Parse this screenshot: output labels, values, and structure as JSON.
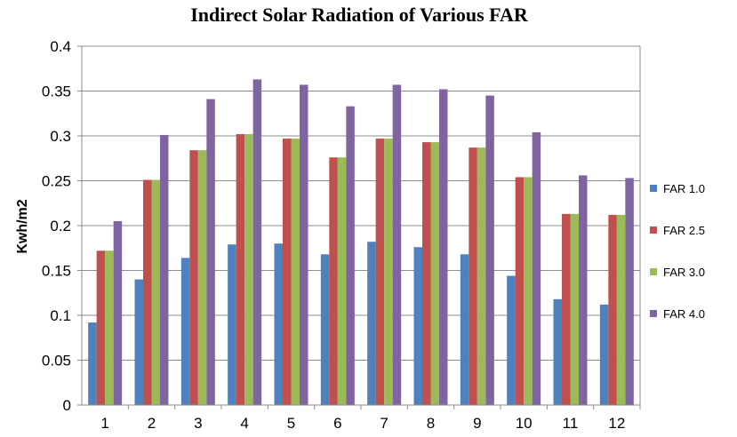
{
  "chart_data": {
    "type": "bar",
    "title": "Indirect Solar Radiation of Various FAR",
    "xlabel": "",
    "ylabel": "Kwh/m2",
    "categories": [
      "1",
      "2",
      "3",
      "4",
      "5",
      "6",
      "7",
      "8",
      "9",
      "10",
      "11",
      "12"
    ],
    "ylim": [
      0,
      0.4
    ],
    "yticks": [
      "0",
      "0.05",
      "0.1",
      "0.15",
      "0.2",
      "0.25",
      "0.3",
      "0.35",
      "0.4"
    ],
    "grid": true,
    "legend_position": "right",
    "series": [
      {
        "name": "FAR 1.0",
        "color": "#4F81BD",
        "values": [
          0.092,
          0.14,
          0.164,
          0.179,
          0.18,
          0.168,
          0.182,
          0.176,
          0.168,
          0.144,
          0.118,
          0.112
        ]
      },
      {
        "name": "FAR 2.5",
        "color": "#C0504D",
        "values": [
          0.172,
          0.251,
          0.284,
          0.302,
          0.297,
          0.276,
          0.297,
          0.293,
          0.287,
          0.254,
          0.213,
          0.212
        ]
      },
      {
        "name": "FAR 3.0",
        "color": "#9BBB59",
        "values": [
          0.172,
          0.251,
          0.284,
          0.302,
          0.297,
          0.276,
          0.297,
          0.293,
          0.287,
          0.254,
          0.213,
          0.212
        ]
      },
      {
        "name": "FAR 4.0",
        "color": "#8064A2",
        "values": [
          0.205,
          0.301,
          0.341,
          0.363,
          0.357,
          0.333,
          0.357,
          0.352,
          0.345,
          0.304,
          0.256,
          0.253
        ]
      }
    ]
  }
}
